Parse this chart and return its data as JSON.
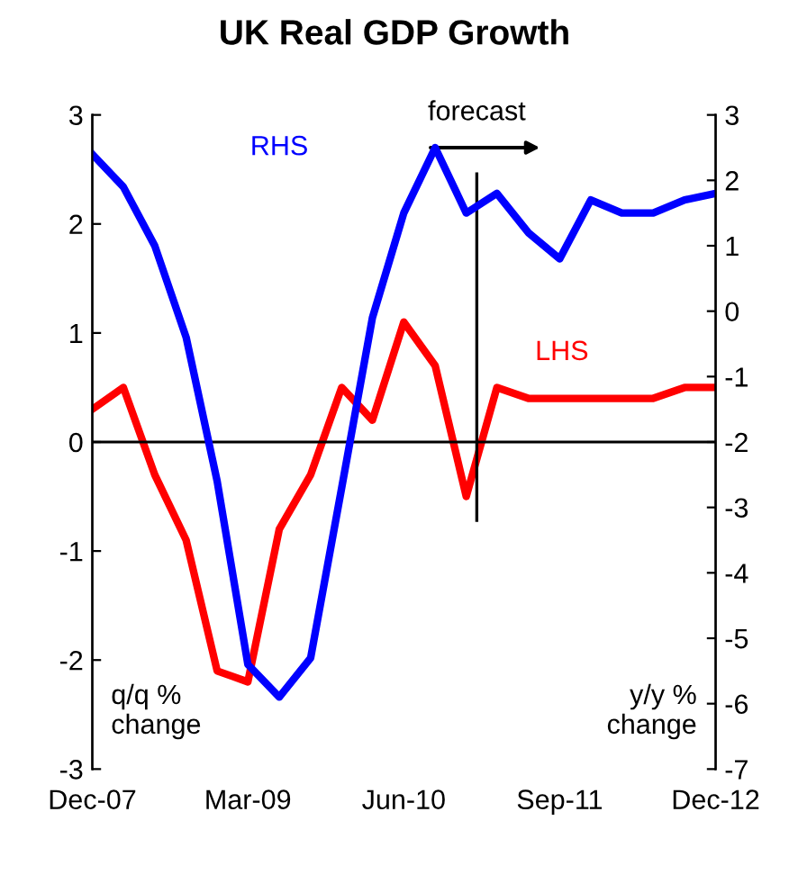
{
  "chart_data": {
    "type": "line",
    "title": "UK Real GDP Growth",
    "ylabel": "q/q % change",
    "y2label": "y/y % change",
    "x": [
      "2007-12",
      "2008-03",
      "2008-06",
      "2008-09",
      "2008-12",
      "2009-03",
      "2009-06",
      "2009-09",
      "2009-12",
      "2010-03",
      "2010-06",
      "2010-09",
      "2010-12",
      "2011-03",
      "2011-06",
      "2011-09",
      "2011-12",
      "2012-03",
      "2012-06",
      "2012-09",
      "2012-12"
    ],
    "series": [
      {
        "name": "LHS",
        "color": "#ff0000",
        "values": [
          0.3,
          0.5,
          -0.3,
          -0.9,
          -2.1,
          -2.2,
          -0.8,
          -0.3,
          0.5,
          0.2,
          1.1,
          0.7,
          -0.5,
          0.5,
          0.4,
          0.4,
          0.4,
          0.4,
          0.4,
          0.5,
          0.5
        ]
      },
      {
        "name": "RHS",
        "color": "#0000ff",
        "axis": "y2",
        "values": [
          2.4,
          1.9,
          1.0,
          -0.4,
          -2.6,
          -5.4,
          -5.9,
          -5.3,
          -2.7,
          -0.1,
          1.5,
          2.5,
          1.5,
          1.8,
          1.2,
          0.8,
          1.7,
          1.5,
          1.5,
          1.7,
          1.8
        ]
      }
    ],
    "xlim": [
      "2007-12",
      "2012-12"
    ],
    "xticks": [
      {
        "value": "2007-12",
        "label": "Dec-07"
      },
      {
        "value": "2009-03",
        "label": "Mar-09"
      },
      {
        "value": "2010-06",
        "label": "Jun-10"
      },
      {
        "value": "2011-09",
        "label": "Sep-11"
      },
      {
        "value": "2012-12",
        "label": "Dec-12"
      }
    ],
    "ylim": [
      -3,
      3
    ],
    "yticks": [
      -3,
      -2,
      -1,
      0,
      1,
      2,
      3
    ],
    "y2lim": [
      -7,
      3
    ],
    "y2ticks": [
      -7,
      -6,
      -5,
      -4,
      -3,
      -2,
      -1,
      0,
      1,
      2,
      3
    ],
    "ref_lines": [
      {
        "axis": "y",
        "value": 0,
        "label": null,
        "color": "#000000"
      },
      {
        "axis": "x",
        "value": "2011-01",
        "label": "forecast",
        "color": "#000000"
      }
    ],
    "grid": false,
    "legend": false,
    "marker": "none",
    "line_style": "solid"
  }
}
